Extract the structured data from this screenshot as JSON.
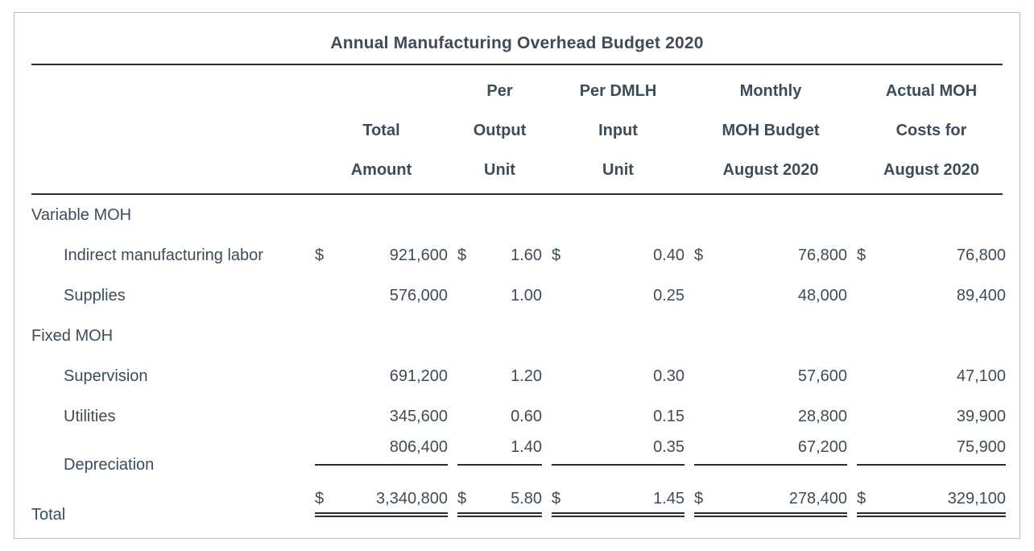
{
  "title": "Annual Manufacturing Overhead Budget 2020",
  "table": {
    "columns": [
      {
        "id": "total-amount",
        "lines": [
          "",
          "Total",
          "Amount"
        ]
      },
      {
        "id": "per-output-unit",
        "lines": [
          "Per",
          "Output",
          "Unit"
        ]
      },
      {
        "id": "per-dmlh-input-unit",
        "lines": [
          "Per DMLH",
          "Input",
          "Unit"
        ]
      },
      {
        "id": "monthly-moh-budget",
        "lines": [
          "Monthly",
          "MOH Budget",
          "August 2020"
        ]
      },
      {
        "id": "actual-moh-costs",
        "lines": [
          "Actual MOH",
          "Costs for",
          "August 2020"
        ]
      }
    ],
    "rows": [
      {
        "label": "Variable MOH",
        "type": "section",
        "cells": []
      },
      {
        "label": "Indirect manufacturing labor",
        "type": "item",
        "cells": [
          {
            "currency": "$",
            "value": "921,600"
          },
          {
            "currency": "$",
            "value": "1.60"
          },
          {
            "currency": "$",
            "value": "0.40"
          },
          {
            "currency": "$",
            "value": "76,800"
          },
          {
            "currency": "$",
            "value": "76,800"
          }
        ]
      },
      {
        "label": "Supplies",
        "type": "item",
        "cells": [
          {
            "currency": "",
            "value": "576,000"
          },
          {
            "currency": "",
            "value": "1.00"
          },
          {
            "currency": "",
            "value": "0.25"
          },
          {
            "currency": "",
            "value": "48,000"
          },
          {
            "currency": "",
            "value": "89,400"
          }
        ]
      },
      {
        "label": "Fixed MOH",
        "type": "section",
        "cells": []
      },
      {
        "label": "Supervision",
        "type": "item",
        "cells": [
          {
            "currency": "",
            "value": "691,200"
          },
          {
            "currency": "",
            "value": "1.20"
          },
          {
            "currency": "",
            "value": "0.30"
          },
          {
            "currency": "",
            "value": "57,600"
          },
          {
            "currency": "",
            "value": "47,100"
          }
        ]
      },
      {
        "label": "Utilities",
        "type": "item",
        "cells": [
          {
            "currency": "",
            "value": "345,600"
          },
          {
            "currency": "",
            "value": "0.60"
          },
          {
            "currency": "",
            "value": "0.15"
          },
          {
            "currency": "",
            "value": "28,800"
          },
          {
            "currency": "",
            "value": "39,900"
          }
        ]
      },
      {
        "label": "Depreciation",
        "type": "item",
        "underline": "single",
        "cells": [
          {
            "currency": "",
            "value": "806,400"
          },
          {
            "currency": "",
            "value": "1.40"
          },
          {
            "currency": "",
            "value": "0.35"
          },
          {
            "currency": "",
            "value": "67,200"
          },
          {
            "currency": "",
            "value": "75,900"
          }
        ]
      },
      {
        "label": "Total",
        "type": "total",
        "underline": "double",
        "cells": [
          {
            "currency": "$",
            "value": "3,340,800"
          },
          {
            "currency": "$",
            "value": "5.80"
          },
          {
            "currency": "$",
            "value": "1.45"
          },
          {
            "currency": "$",
            "value": "278,400"
          },
          {
            "currency": "$",
            "value": "329,100"
          }
        ]
      }
    ]
  },
  "colors": {
    "text": "#3e4c59",
    "rule": "#242f38",
    "panel_border": "#b9bec5",
    "background": "#ffffff"
  }
}
